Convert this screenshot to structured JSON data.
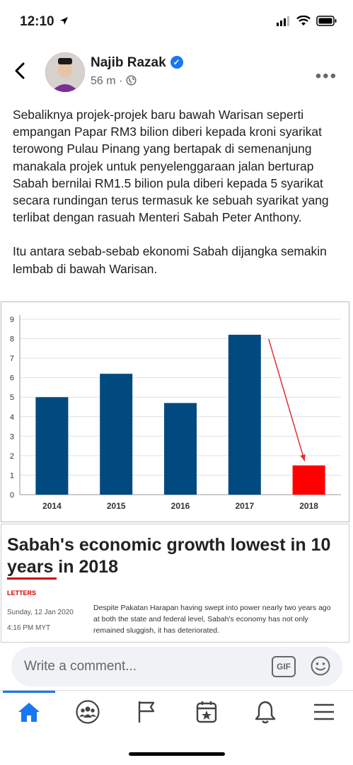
{
  "status_bar": {
    "time": "12:10"
  },
  "post": {
    "author": "Najib Razak",
    "time_ago": "56 m",
    "separator": "·",
    "paragraphs": [
      "Sebaliknya projek-projek baru bawah Warisan seperti empangan Papar RM3 bilion diberi kepada kroni syarikat terowong Pulau Pinang yang bertapak di semenanjung manakala projek untuk penyelenggaraan jalan berturap Sabah bernilai RM1.5 bilion pula diberi kepada 5 syarikat secara rundingan terus termasuk ke sebuah syarikat yang terlibat dengan rasuah Menteri Sabah Peter Anthony.",
      "Itu antara sebab-sebab ekonomi Sabah dijangka semakin lembab di bawah Warisan."
    ]
  },
  "chart_data": {
    "type": "bar",
    "categories": [
      "2014",
      "2015",
      "2016",
      "2017",
      "2018"
    ],
    "values": [
      5.0,
      6.2,
      4.7,
      8.2,
      1.5
    ],
    "bar_colors": [
      "#004a80",
      "#004a80",
      "#004a80",
      "#004a80",
      "#ff0000"
    ],
    "ylim": [
      0,
      9
    ],
    "yticks": [
      "0",
      "1",
      "2",
      "3",
      "4",
      "5",
      "6",
      "7",
      "8",
      "9"
    ],
    "grid": true,
    "annotation": "red arrow from 2017 bar down to 2018 bar"
  },
  "article": {
    "headline": "Sabah's economic growth lowest in 10 years in 2018",
    "category": "LETTERS",
    "date": "Sunday, 12 Jan 2020",
    "time": "4:16 PM MYT",
    "text": "Despite Pakatan Harapan having swept into power nearly two years ago at both the state and federal level, Sabah's economy has not only remained sluggish, it has deteriorated."
  },
  "comment": {
    "placeholder": "Write a comment...",
    "gif_label": "GIF"
  },
  "tabs": [
    "home-icon",
    "groups-icon",
    "pages-icon",
    "events-icon",
    "notifications-icon",
    "menu-icon"
  ],
  "colors": {
    "accent": "#1877f2",
    "bar": "#004a80",
    "highlight_bar": "#ff0000"
  }
}
